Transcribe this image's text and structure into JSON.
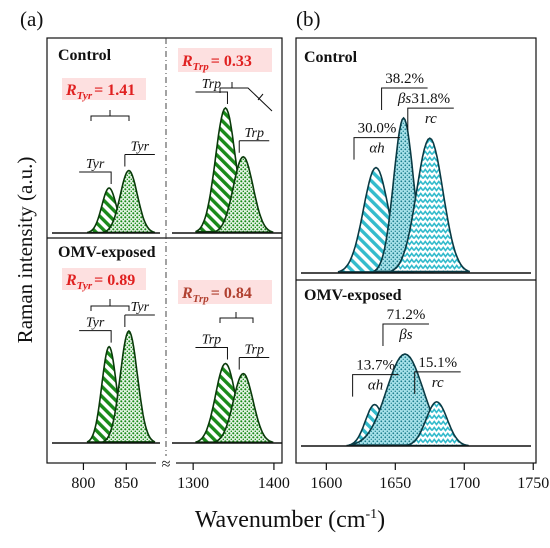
{
  "colors": {
    "tyr_trp_fill": "#1a8a1a",
    "tyr_trp_stroke": "#0a3a0a",
    "sec_fill": "#33bbcc",
    "sec_stroke": "#0a3a44",
    "highlight": "#fde0e0",
    "ratio_red": "#e02020",
    "ratio_dark": "#b04030",
    "axis": "#111111"
  },
  "labels": {
    "panel_a": "(a)",
    "panel_b": "(b)",
    "ylabel": "Raman intensity (a.u.)",
    "xlabel": "Wavenumber (cm",
    "xlabel_sup": "-1",
    "xlabel_close": ")",
    "control": "Control",
    "omv": "OMV-exposed",
    "tyr": "Tyr",
    "trp": "Trp",
    "ratio_R": "R",
    "ratio_tyr_sub": "Tyr",
    "ratio_trp_sub": "Trp",
    "ratio_control_tyr": "= 1.41",
    "ratio_control_trp": "= 0.33",
    "ratio_omv_tyr": "= 0.89",
    "ratio_omv_trp": "= 0.84",
    "axis_break": "≈"
  },
  "chart_data": [
    {
      "type": "area",
      "panel": "(a)",
      "ylabel": "Raman intensity (a.u.)",
      "xlabel": "Wavenumber (cm-1)",
      "x_ticks": [
        800,
        850,
        1300,
        1400
      ],
      "x_segments": [
        [
          775,
          880
        ],
        [
          1280,
          1410
        ]
      ],
      "axis_break": true,
      "subpanels": [
        {
          "name": "Control",
          "peaks": [
            {
              "label": "Tyr",
              "center": 830,
              "height": 0.36,
              "pattern": "hatch"
            },
            {
              "label": "Tyr",
              "center": 853,
              "height": 0.5,
              "pattern": "dots"
            },
            {
              "label": "Trp",
              "center": 1340,
              "height": 1.0,
              "pattern": "hatch"
            },
            {
              "label": "Trp",
              "center": 1362,
              "height": 0.61,
              "pattern": "dots"
            }
          ],
          "ratios": {
            "R_Tyr": 1.41,
            "R_Trp": 0.33
          }
        },
        {
          "name": "OMV-exposed",
          "peaks": [
            {
              "label": "Tyr",
              "center": 830,
              "height": 0.86,
              "pattern": "hatch"
            },
            {
              "label": "Tyr",
              "center": 853,
              "height": 1.0,
              "pattern": "dots"
            },
            {
              "label": "Trp",
              "center": 1340,
              "height": 0.71,
              "pattern": "hatch"
            },
            {
              "label": "Trp",
              "center": 1362,
              "height": 0.62,
              "pattern": "dots"
            }
          ],
          "ratios": {
            "R_Tyr": 0.89,
            "R_Trp": 0.84
          }
        }
      ]
    },
    {
      "type": "area",
      "panel": "(b)",
      "x_ticks": [
        1600,
        1650,
        1700,
        1750
      ],
      "xlim": [
        1578,
        1752
      ],
      "subpanels": [
        {
          "name": "Control",
          "components": [
            {
              "label": "αh",
              "percent": "30.0%",
              "center": 1636,
              "height": 0.68,
              "pattern": "hatch"
            },
            {
              "label": "βs",
              "percent": "38.2%",
              "center": 1656,
              "height": 1.0,
              "pattern": "dots"
            },
            {
              "label": "rc",
              "percent": "31.8%",
              "center": 1675,
              "height": 0.87,
              "pattern": "zigzag"
            }
          ]
        },
        {
          "name": "OMV-exposed",
          "components": [
            {
              "label": "αh",
              "percent": "13.7%",
              "center": 1635,
              "height": 0.45,
              "pattern": "hatch"
            },
            {
              "label": "βs",
              "percent": "71.2%",
              "center": 1657,
              "height": 1.0,
              "pattern": "dots"
            },
            {
              "label": "rc",
              "percent": "15.1%",
              "center": 1680,
              "height": 0.48,
              "pattern": "zigzag"
            }
          ]
        }
      ]
    }
  ]
}
